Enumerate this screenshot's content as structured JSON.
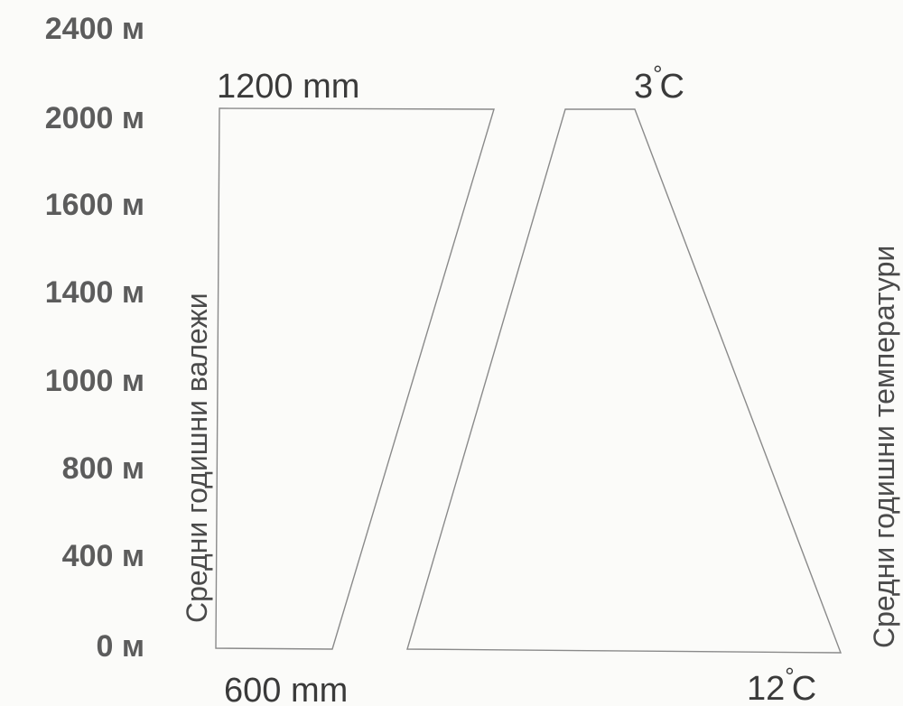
{
  "altitude_labels": [
    "2400 м",
    "2000 м",
    "1600 м",
    "1400 м",
    "1000 м",
    "800 м",
    "400 м",
    "0 м"
  ],
  "precipitation": {
    "axis_label": "Средни годишни валежи",
    "top_value": "1200 mm",
    "bottom_value": "600 mm"
  },
  "temperature": {
    "axis_label": "Средни годишни температури",
    "top_value": "3",
    "bottom_value": "12",
    "degree_symbol": "°",
    "unit": "C"
  }
}
